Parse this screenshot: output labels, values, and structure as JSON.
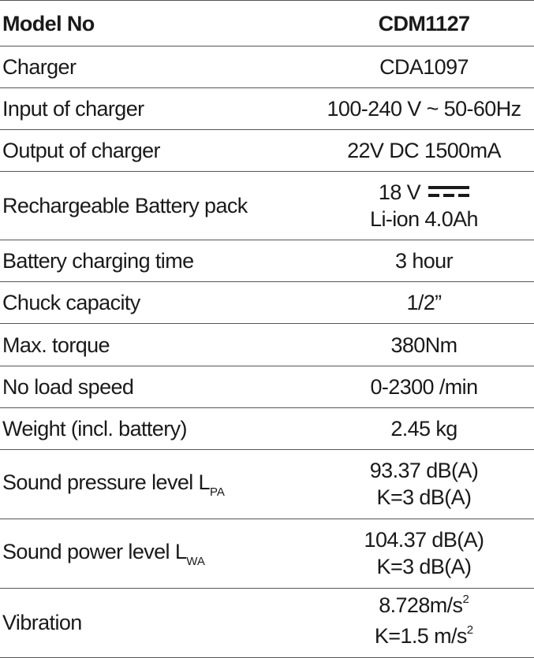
{
  "rows": [
    {
      "label": "Model No",
      "value": "CDM1127",
      "header": true
    },
    {
      "label": "Charger",
      "value": "CDA1097"
    },
    {
      "label": "Input of charger",
      "value": "100-240 V ~ 50-60Hz"
    },
    {
      "label": "Output of charger",
      "value": "22V DC 1500mA"
    },
    {
      "label": "Rechargeable Battery pack",
      "value_line1": "18 V",
      "value_line2": "Li-ion 4.0Ah",
      "icon": "dc-symbol-icon"
    },
    {
      "label": "Battery charging time",
      "value": "3 hour"
    },
    {
      "label": "Chuck capacity",
      "value": "1/2”"
    },
    {
      "label": "Max. torque",
      "value": "380Nm"
    },
    {
      "label": "No load speed",
      "value": "0-2300 /min"
    },
    {
      "label": "Weight (incl. battery)",
      "value": "2.45 kg"
    },
    {
      "label": "Sound pressure level L",
      "label_sub": "PA",
      "value_line1": "93.37 dB(A)",
      "value_line2": "K=3 dB(A)"
    },
    {
      "label": "Sound power level L",
      "label_sub": "WA",
      "value_line1": "104.37 dB(A)",
      "value_line2": "K=3 dB(A)"
    },
    {
      "label": "Vibration",
      "value_line1": "8.728m/s",
      "value_line1_sup": "2",
      "value_line2": "K=1.5 m/s",
      "value_line2_sup": "2"
    }
  ]
}
